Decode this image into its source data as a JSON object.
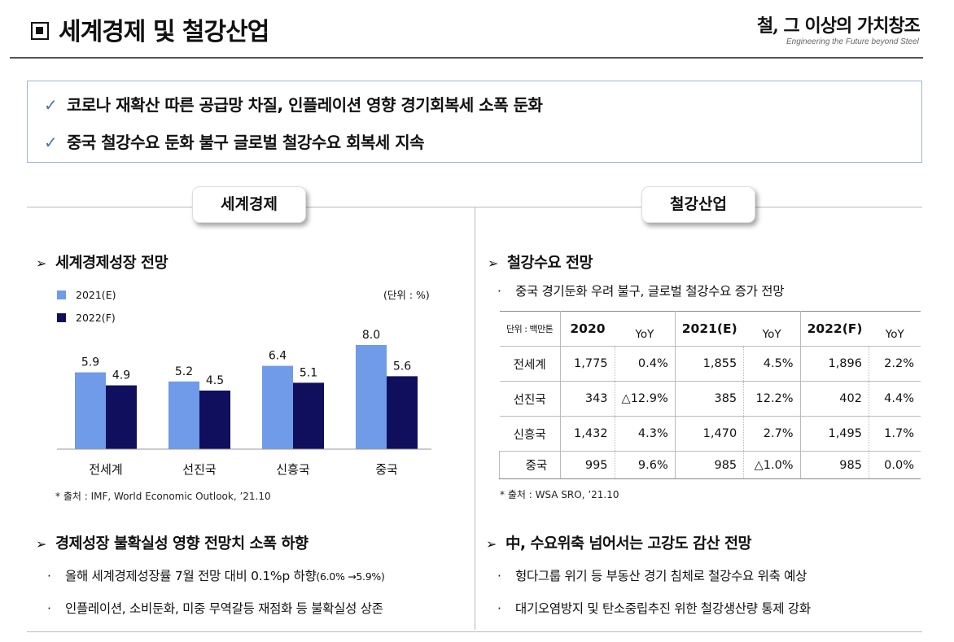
{
  "header": {
    "title": "세계경제 및 철강산업",
    "brand_main": "철, 그 이상의 가치창조",
    "brand_sub": "Engineering the Future beyond Steel"
  },
  "summary": [
    "코로나 재확산 따른 공급망 차질, 인플레이션 영향 경기회복세 소폭 둔화",
    "중국 철강수요 둔화 불구 글로벌 철강수요 회복세 지속"
  ],
  "summary_check": "✓",
  "tabs": {
    "left": "세계경제",
    "right": "철강산업"
  },
  "left": {
    "heading1": "세계경제성장 전망",
    "unit": "(단위 : %)",
    "source": "* 출처 : IMF, World Economic Outlook, ’21.10",
    "heading2": "경제성장 불확실성 영향 전망치 소폭 하향",
    "bullet1_main": "올해 세계경제성장률 7월 전망 대비 0.1%p 하향",
    "bullet1_small": "(6.0% →5.9%)",
    "bullet2": "인플레이션, 소비둔화, 미중 무역갈등 재점화 등 불확실성 상존"
  },
  "right": {
    "heading1": "철강수요 전망",
    "note": "중국 경기둔화 우려 불구, 글로벌 철강수요 증가 전망",
    "source": "* 출처 : WSA SRO, ’21.10",
    "heading2_prefix": "中",
    "heading2": ", 수요위축 넘어서는 고강도 감산 전망",
    "bullet1": "헝다그룹 위기 등 부동산 경기 침체로 철강수요 위축 예상",
    "bullet2": "대기오염방지 및 탄소중립추진 위한 철강생산량 통제 강화"
  },
  "bullet_dot": "·",
  "arrow": "➢",
  "table": {
    "unit_label": "단위 : 백만톤",
    "years": [
      "2020",
      "2021(E)",
      "2022(F)"
    ],
    "yoy_label": "YoY",
    "rows": [
      {
        "label": "전세계",
        "cells": [
          "1,775",
          "0.4%",
          "1,855",
          "4.5%",
          "1,896",
          "2.2%"
        ]
      },
      {
        "label": "선진국",
        "cells": [
          "343",
          "△12.9%",
          "385",
          "12.2%",
          "402",
          "4.4%"
        ]
      },
      {
        "label": "신흥국",
        "cells": [
          "1,432",
          "4.3%",
          "1,470",
          "2.7%",
          "1,495",
          "1.7%"
        ]
      },
      {
        "label": "중국",
        "cells": [
          "995",
          "9.6%",
          "985",
          "△1.0%",
          "985",
          "0.0%"
        ]
      }
    ]
  },
  "colors": {
    "series2021": "#6f9be8",
    "series2022": "#0f0f5e",
    "accent": "#4a72b0"
  },
  "chart_data": {
    "type": "bar",
    "categories": [
      "전세계",
      "선진국",
      "신흥국",
      "중국"
    ],
    "series": [
      {
        "name": "2021(E)",
        "values": [
          5.9,
          5.2,
          6.4,
          8.0
        ]
      },
      {
        "name": "2022(F)",
        "values": [
          4.9,
          4.5,
          5.1,
          5.6
        ]
      }
    ],
    "value_labels": {
      "2021(E)": [
        "5.9",
        "5.2",
        "6.4",
        "8.0"
      ],
      "2022(F)": [
        "4.9",
        "4.5",
        "5.1",
        "5.6"
      ]
    },
    "ylim": [
      0,
      9.5
    ],
    "legend": "top-left",
    "grid": false
  }
}
